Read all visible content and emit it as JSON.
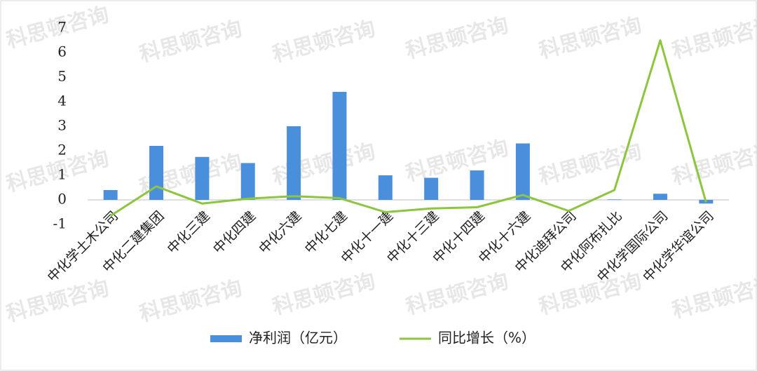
{
  "watermark": "科思顿咨询",
  "chart_data": {
    "type": "bar_line",
    "categories": [
      "中化学土木公司",
      "中化二建集团",
      "中化三建",
      "中化四建",
      "中化六建",
      "中化七建",
      "中化十一建",
      "中化十三建",
      "中化十四建",
      "中化十六建",
      "中化迪拜公司",
      "中化阿布扎比",
      "中化学国际公司",
      "中化学华谊公司"
    ],
    "series": [
      {
        "name": "净利润（亿元）",
        "type": "bar",
        "color": "#4a8fdc",
        "values": [
          0.4,
          2.2,
          1.75,
          1.5,
          3.0,
          4.4,
          1.0,
          0.9,
          1.2,
          2.3,
          0,
          0.02,
          0.25,
          -0.15
        ]
      },
      {
        "name": "同比增长（%）",
        "type": "line",
        "color": "#8cc63f",
        "values": [
          -0.65,
          0.55,
          -0.15,
          0.05,
          0.15,
          0.07,
          -0.5,
          -0.35,
          -0.3,
          0.2,
          -0.45,
          0.4,
          6.5,
          -0.1
        ]
      }
    ],
    "ylim": [
      -1,
      7
    ],
    "yticks": [
      -1,
      0,
      1,
      2,
      3,
      4,
      5,
      6,
      7
    ],
    "legend": "bottom",
    "grid": false
  }
}
